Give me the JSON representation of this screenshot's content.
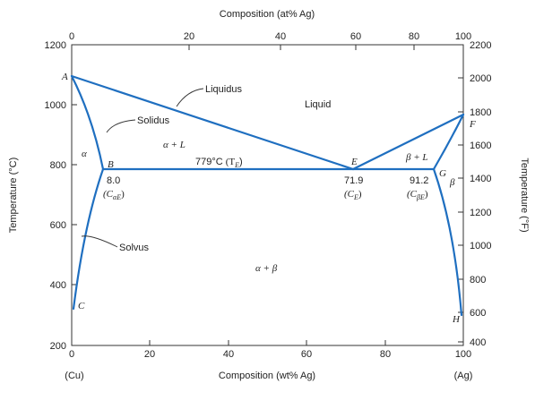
{
  "top_axis": {
    "title": "Composition (at% Ag)",
    "ticks": [
      "0",
      "20",
      "40",
      "60",
      "80",
      "100"
    ]
  },
  "bottom_axis": {
    "title": "Composition (wt% Ag)",
    "ticks": [
      "0",
      "20",
      "40",
      "60",
      "80",
      "100"
    ],
    "left_end": "(Cu)",
    "right_end": "(Ag)"
  },
  "left_axis": {
    "title": "Temperature (°C)",
    "ticks": [
      "200",
      "400",
      "600",
      "800",
      "1000",
      "1200"
    ]
  },
  "right_axis": {
    "title": "Temperature (°F)",
    "ticks": [
      "400",
      "600",
      "800",
      "1000",
      "1200",
      "1400",
      "1600",
      "1800",
      "2000",
      "2200"
    ]
  },
  "regions": {
    "liquid": "Liquid",
    "alpha": "α",
    "beta": "β",
    "alpha_l": "α + L",
    "beta_l": "β + L",
    "alpha_beta": "α + β"
  },
  "points": {
    "A": "A",
    "B": "B",
    "C": "C",
    "E": "E",
    "F": "F",
    "G": "G",
    "H": "H"
  },
  "callouts": {
    "liquidus": "Liquidus",
    "solidus": "Solidus",
    "solvus": "Solvus"
  },
  "eutectic": {
    "temp_label": "779°C",
    "temp_symbol": "(T",
    "temp_sub": "E",
    "temp_close": ")",
    "b_value": "8.0",
    "b_symbol": "(C",
    "b_sub": "αE",
    "e_value": "71.9",
    "e_symbol": "(C",
    "e_sub": "E",
    "g_value": "91.2",
    "g_symbol": "(C",
    "g_sub": "βE"
  },
  "colors": {
    "curve": "#1f6fc0",
    "axis": "#333333"
  }
}
